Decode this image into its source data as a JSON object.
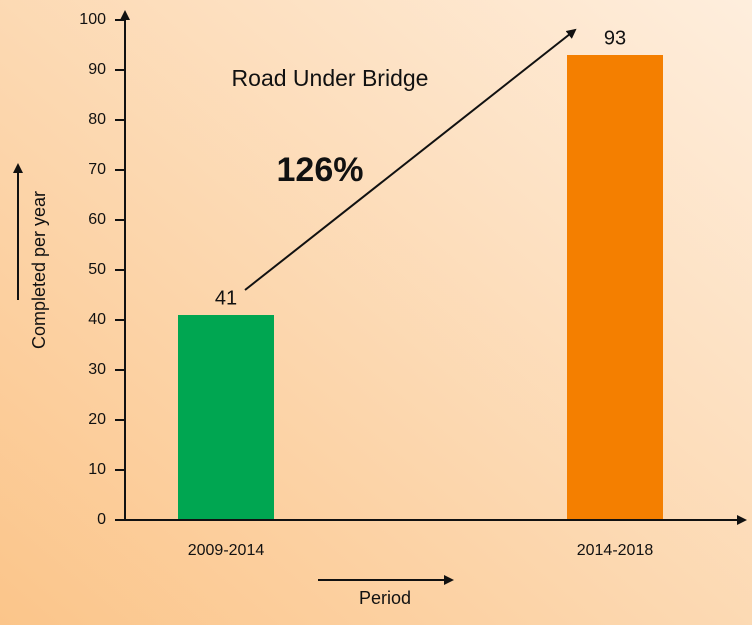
{
  "chart_data": {
    "type": "bar",
    "title": "Road Under Bridge",
    "annotation": "126%",
    "xlabel": "Period",
    "ylabel": "Completed per year",
    "categories": [
      "2009-2014",
      "2014-2018"
    ],
    "values": [
      41,
      93
    ],
    "colors": [
      "#00a651",
      "#f47f00"
    ],
    "ylim": [
      0,
      100
    ],
    "yticks": [
      0,
      10,
      20,
      30,
      40,
      50,
      60,
      70,
      80,
      90,
      100
    ],
    "grid": false
  }
}
